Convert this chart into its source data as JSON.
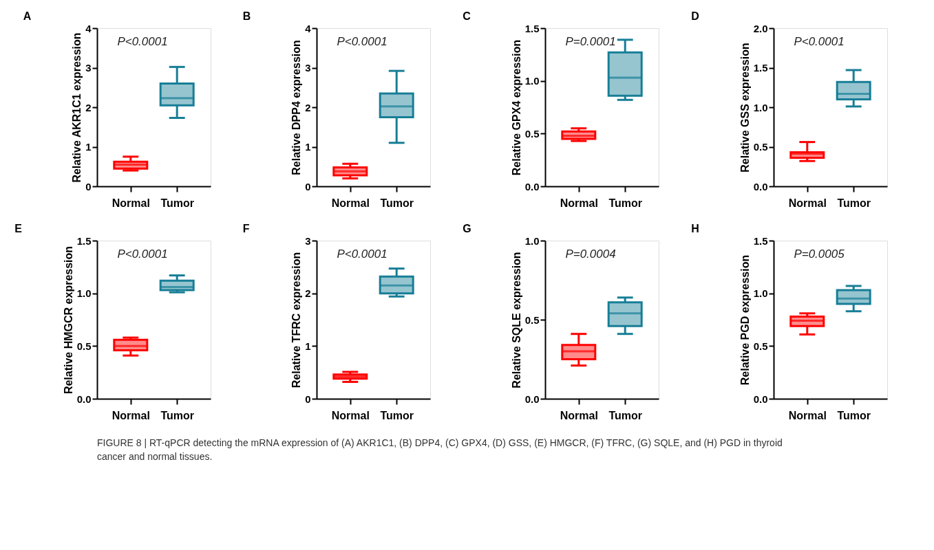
{
  "chart_data": [
    {
      "type": "box",
      "title": "A",
      "ylabel": "Relative AKR1C1 expression",
      "categories": [
        "Normal",
        "Tumor"
      ],
      "colors": [
        "#ff0000",
        "#177e96"
      ],
      "ylim": [
        0,
        4
      ],
      "yticks": [
        0,
        1,
        2,
        3,
        4
      ],
      "grid": false,
      "annotations": [
        "P<0.0001"
      ],
      "boxes": [
        {
          "low": 0.4,
          "q1": 0.45,
          "median": 0.55,
          "q3": 0.62,
          "high": 0.75
        },
        {
          "low": 1.73,
          "q1": 2.05,
          "median": 2.23,
          "q3": 2.6,
          "high": 3.02
        }
      ]
    },
    {
      "type": "box",
      "title": "B",
      "ylabel": "Relative DPP4 expression",
      "categories": [
        "Normal",
        "Tumor"
      ],
      "colors": [
        "#ff0000",
        "#177e96"
      ],
      "ylim": [
        0,
        4
      ],
      "yticks": [
        0,
        1,
        2,
        3,
        4
      ],
      "grid": false,
      "annotations": [
        "P<0.0001"
      ],
      "boxes": [
        {
          "low": 0.2,
          "q1": 0.28,
          "median": 0.38,
          "q3": 0.48,
          "high": 0.57
        },
        {
          "low": 1.1,
          "q1": 1.75,
          "median": 2.02,
          "q3": 2.35,
          "high": 2.92
        }
      ]
    },
    {
      "type": "box",
      "title": "C",
      "ylabel": "Relative GPX4 expression",
      "categories": [
        "Normal",
        "Tumor"
      ],
      "colors": [
        "#ff0000",
        "#177e96"
      ],
      "ylim": [
        0,
        1.5
      ],
      "yticks": [
        {
          "value": 0,
          "label": "0.0"
        },
        0.5,
        {
          "value": 1,
          "label": "1.0"
        },
        1.5
      ],
      "grid": false,
      "annotations": [
        "P=0.0001"
      ],
      "boxes": [
        {
          "low": 0.43,
          "q1": 0.45,
          "median": 0.48,
          "q3": 0.52,
          "high": 0.55
        },
        {
          "low": 0.82,
          "q1": 0.86,
          "median": 1.03,
          "q3": 1.27,
          "high": 1.39
        }
      ]
    },
    {
      "type": "box",
      "title": "D",
      "ylabel": "Relative GSS expression",
      "categories": [
        "Normal",
        "Tumor"
      ],
      "colors": [
        "#ff0000",
        "#177e96"
      ],
      "ylim": [
        0,
        2
      ],
      "yticks": [
        {
          "value": 0,
          "label": "0.0"
        },
        0.5,
        {
          "value": 1,
          "label": "1.0"
        },
        1.5,
        {
          "value": 2,
          "label": "2.0"
        }
      ],
      "grid": false,
      "annotations": [
        "P<0.0001"
      ],
      "boxes": [
        {
          "low": 0.32,
          "q1": 0.36,
          "median": 0.41,
          "q3": 0.43,
          "high": 0.56
        },
        {
          "low": 1.01,
          "q1": 1.1,
          "median": 1.17,
          "q3": 1.32,
          "high": 1.47
        }
      ]
    },
    {
      "type": "box",
      "title": "E",
      "ylabel": "Relative HMGCR expression",
      "categories": [
        "Normal",
        "Tumor"
      ],
      "colors": [
        "#ff0000",
        "#177e96"
      ],
      "ylim": [
        0,
        1.5
      ],
      "yticks": [
        {
          "value": 0,
          "label": "0.0"
        },
        0.5,
        {
          "value": 1,
          "label": "1.0"
        },
        1.5
      ],
      "grid": false,
      "annotations": [
        "P<0.0001"
      ],
      "boxes": [
        {
          "low": 0.41,
          "q1": 0.46,
          "median": 0.5,
          "q3": 0.56,
          "high": 0.58
        },
        {
          "low": 1.01,
          "q1": 1.03,
          "median": 1.06,
          "q3": 1.12,
          "high": 1.17
        }
      ]
    },
    {
      "type": "box",
      "title": "F",
      "ylabel": "Relative TFRC expression",
      "categories": [
        "Normal",
        "Tumor"
      ],
      "colors": [
        "#ff0000",
        "#177e96"
      ],
      "ylim": [
        0,
        3
      ],
      "yticks": [
        0,
        1,
        2,
        3
      ],
      "grid": false,
      "annotations": [
        "P<0.0001"
      ],
      "boxes": [
        {
          "low": 0.32,
          "q1": 0.38,
          "median": 0.42,
          "q3": 0.46,
          "high": 0.51
        },
        {
          "low": 1.94,
          "q1": 2.0,
          "median": 2.15,
          "q3": 2.32,
          "high": 2.47
        }
      ]
    },
    {
      "type": "box",
      "title": "G",
      "ylabel": "Relative SQLE expression",
      "categories": [
        "Normal",
        "Tumor"
      ],
      "colors": [
        "#ff0000",
        "#177e96"
      ],
      "ylim": [
        0,
        1
      ],
      "yticks": [
        {
          "value": 0,
          "label": "0.0"
        },
        0.5,
        {
          "value": 1,
          "label": "1.0"
        }
      ],
      "grid": false,
      "annotations": [
        "P=0.0004"
      ],
      "boxes": [
        {
          "low": 0.21,
          "q1": 0.25,
          "median": 0.3,
          "q3": 0.34,
          "high": 0.41
        },
        {
          "low": 0.41,
          "q1": 0.46,
          "median": 0.54,
          "q3": 0.61,
          "high": 0.64
        }
      ]
    },
    {
      "type": "box",
      "title": "H",
      "ylabel": "Relative PGD expression",
      "categories": [
        "Normal",
        "Tumor"
      ],
      "colors": [
        "#ff0000",
        "#177e96"
      ],
      "ylim": [
        0,
        1.5
      ],
      "yticks": [
        {
          "value": 0,
          "label": "0.0"
        },
        0.5,
        {
          "value": 1,
          "label": "1.0"
        },
        1.5
      ],
      "grid": false,
      "annotations": [
        "P=0.0005",
        "FIGURE 8 | RT-qPCR detecting the mRNA expression of (A) AKR1C1, (B) DPP4, (C) GPX4, (D) GSS, (E) HMGCR, (F) TFRC, (G) SQLE, and (H) PGD in thyroid cancer and normal tissues."
      ],
      "boxes": [
        {
          "low": 0.61,
          "q1": 0.69,
          "median": 0.74,
          "q3": 0.78,
          "high": 0.81
        },
        {
          "low": 0.83,
          "q1": 0.9,
          "median": 0.95,
          "q3": 1.03,
          "high": 1.07
        }
      ]
    }
  ]
}
